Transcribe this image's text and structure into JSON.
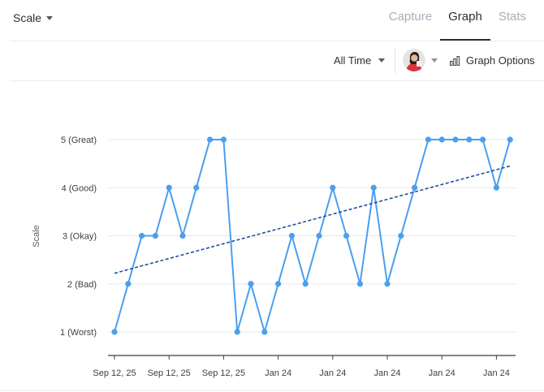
{
  "header": {
    "scale_dropdown": "Scale",
    "tabs": [
      {
        "label": "Capture",
        "active": false
      },
      {
        "label": "Graph",
        "active": true
      },
      {
        "label": "Stats",
        "active": false
      }
    ]
  },
  "toolbar": {
    "timeframe": "All Time",
    "graph_options": "Graph Options",
    "avatar_icon": "user-avatar-icon",
    "graph_options_icon": "bar-chart-icon"
  },
  "colors": {
    "series": "#4a9ff0",
    "trend": "#1f4f9a",
    "grid": "#e6e8ec",
    "axis": "#3a3f46"
  },
  "chart_data": {
    "type": "line",
    "ylabel": "Scale",
    "ylim": [
      1,
      5
    ],
    "yticks": [
      {
        "value": 1,
        "label": "1 (Worst)"
      },
      {
        "value": 2,
        "label": "2 (Bad)"
      },
      {
        "value": 3,
        "label": "3 (Okay)"
      },
      {
        "value": 4,
        "label": "4 (Good)"
      },
      {
        "value": 5,
        "label": "5 (Great)"
      }
    ],
    "xticks": [
      {
        "index": 0,
        "label": "Sep 12, 25"
      },
      {
        "index": 4,
        "label": "Sep 12, 25"
      },
      {
        "index": 8,
        "label": "Sep 12, 25"
      },
      {
        "index": 12,
        "label": "Jan 24"
      },
      {
        "index": 16,
        "label": "Jan 24"
      },
      {
        "index": 20,
        "label": "Jan 24"
      },
      {
        "index": 24,
        "label": "Jan 24"
      },
      {
        "index": 28,
        "label": "Jan 24"
      }
    ],
    "grid": true,
    "series": [
      {
        "values": [
          1,
          2,
          3,
          3,
          4,
          3,
          4,
          5,
          5,
          1,
          2,
          1,
          2,
          3,
          2,
          3,
          4,
          3,
          2,
          4,
          2,
          3,
          4,
          5,
          5,
          5,
          5,
          5,
          4,
          5
        ]
      }
    ],
    "trendline": {
      "start": 2.22,
      "end": 4.45
    }
  }
}
